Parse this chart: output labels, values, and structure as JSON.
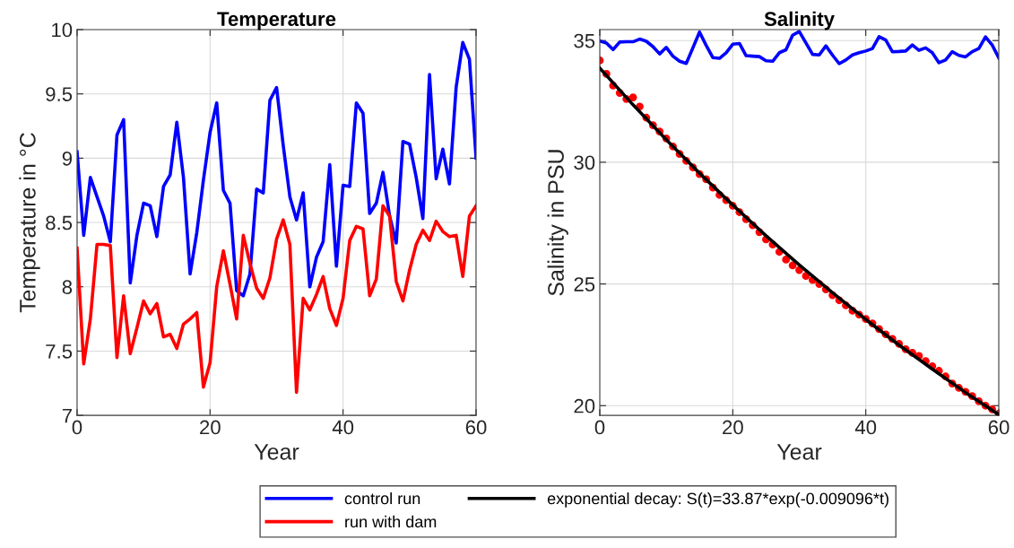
{
  "chart_data": [
    {
      "type": "line",
      "title": "Temperature",
      "xlabel": "Year",
      "ylabel": "Temperature in °C",
      "xlim": [
        0,
        60
      ],
      "xticks": [
        0,
        20,
        40,
        60
      ],
      "ylim": [
        7,
        10
      ],
      "yticks": [
        7,
        7.5,
        8,
        8.5,
        9,
        9.5,
        10
      ],
      "grid": true,
      "legend": "bottom",
      "x": [
        0,
        1,
        2,
        3,
        4,
        5,
        6,
        7,
        8,
        9,
        10,
        11,
        12,
        13,
        14,
        15,
        16,
        17,
        18,
        19,
        20,
        21,
        22,
        23,
        24,
        25,
        26,
        27,
        28,
        29,
        30,
        31,
        32,
        33,
        34,
        35,
        36,
        37,
        38,
        39,
        40,
        41,
        42,
        43,
        44,
        45,
        46,
        47,
        48,
        49,
        50,
        51,
        52,
        53,
        54,
        55,
        56,
        57,
        58,
        59,
        60
      ],
      "series": [
        {
          "name": "control run",
          "color": "#0000ff",
          "values": [
            9.05,
            8.4,
            8.85,
            8.7,
            8.55,
            8.35,
            9.18,
            9.3,
            8.03,
            8.4,
            8.65,
            8.63,
            8.39,
            8.78,
            8.87,
            9.28,
            8.85,
            8.1,
            8.42,
            8.83,
            9.2,
            9.43,
            8.75,
            8.65,
            7.97,
            7.93,
            8.1,
            8.76,
            8.73,
            9.45,
            9.55,
            9.1,
            8.7,
            8.52,
            8.73,
            8.0,
            8.23,
            8.35,
            8.95,
            8.16,
            8.79,
            8.78,
            9.43,
            9.35,
            8.57,
            8.65,
            8.89,
            8.55,
            8.34,
            9.13,
            9.11,
            8.85,
            8.53,
            9.65,
            8.84,
            9.07,
            8.8,
            9.55,
            9.9,
            9.77,
            9.0
          ]
        },
        {
          "name": "run with dam",
          "color": "#ff0000",
          "values": [
            8.3,
            7.4,
            7.75,
            8.33,
            8.33,
            8.32,
            7.45,
            7.93,
            7.48,
            7.68,
            7.89,
            7.79,
            7.87,
            7.61,
            7.63,
            7.52,
            7.71,
            7.75,
            7.8,
            7.22,
            7.41,
            8.0,
            8.28,
            8.02,
            7.75,
            8.4,
            8.18,
            7.99,
            7.91,
            8.07,
            8.37,
            8.52,
            8.33,
            7.18,
            7.91,
            7.82,
            7.94,
            8.08,
            7.83,
            7.7,
            7.91,
            8.36,
            8.47,
            8.45,
            7.93,
            8.06,
            8.63,
            8.55,
            8.04,
            7.89,
            8.13,
            8.33,
            8.44,
            8.36,
            8.51,
            8.43,
            8.39,
            8.4,
            8.08,
            8.55,
            8.63
          ]
        }
      ]
    },
    {
      "type": "line",
      "title": "Salinity",
      "xlabel": "Year",
      "ylabel": "Salinity in PSU",
      "xlim": [
        0,
        60
      ],
      "xticks": [
        0,
        20,
        40,
        60
      ],
      "ylim": [
        19.6,
        35.45
      ],
      "yticks": [
        20,
        25,
        30,
        35
      ],
      "grid": true,
      "legend": "bottom",
      "x": [
        0,
        1,
        2,
        3,
        4,
        5,
        6,
        7,
        8,
        9,
        10,
        11,
        12,
        13,
        14,
        15,
        16,
        17,
        18,
        19,
        20,
        21,
        22,
        23,
        24,
        25,
        26,
        27,
        28,
        29,
        30,
        31,
        32,
        33,
        34,
        35,
        36,
        37,
        38,
        39,
        40,
        41,
        42,
        43,
        44,
        45,
        46,
        47,
        48,
        49,
        50,
        51,
        52,
        53,
        54,
        55,
        56,
        57,
        58,
        59,
        60
      ],
      "series": [
        {
          "color": "#0000ff",
          "values": [
            34.98,
            34.9,
            34.63,
            34.94,
            34.95,
            34.95,
            35.06,
            34.97,
            34.75,
            34.45,
            34.72,
            34.36,
            34.15,
            34.06,
            34.7,
            35.35,
            34.8,
            34.3,
            34.27,
            34.5,
            34.85,
            34.88,
            34.38,
            34.36,
            34.34,
            34.17,
            34.15,
            34.5,
            34.62,
            35.22,
            35.37,
            34.9,
            34.43,
            34.41,
            34.78,
            34.4,
            34.05,
            34.2,
            34.41,
            34.5,
            34.57,
            34.67,
            35.16,
            35.02,
            34.54,
            34.55,
            34.57,
            34.82,
            34.6,
            34.7,
            34.5,
            34.09,
            34.2,
            34.54,
            34.39,
            34.33,
            34.54,
            34.67,
            35.15,
            34.82,
            34.29
          ]
        },
        {
          "type": "scatter",
          "marker": "circle",
          "color": "#ff0000",
          "values": [
            34.18,
            33.63,
            33.15,
            32.85,
            32.6,
            32.66,
            32.29,
            31.83,
            31.52,
            31.26,
            30.98,
            30.65,
            30.34,
            30.06,
            29.79,
            29.51,
            29.3,
            28.96,
            28.66,
            28.44,
            28.21,
            27.95,
            27.66,
            27.41,
            27.13,
            26.83,
            26.62,
            26.32,
            26.0,
            25.76,
            25.57,
            25.33,
            25.16,
            25.0,
            24.78,
            24.54,
            24.33,
            24.12,
            23.9,
            23.74,
            23.56,
            23.38,
            23.15,
            22.93,
            22.74,
            22.54,
            22.32,
            22.17,
            22.04,
            21.83,
            21.62,
            21.43,
            21.2,
            20.91,
            20.73,
            20.57,
            20.39,
            20.18,
            20.0,
            19.85,
            19.67
          ]
        },
        {
          "name": "exponential decay: S(t)=33.87*exp(-0.009096*t)",
          "type": "line",
          "color": "#000000",
          "x": [
            0,
            5,
            10,
            15,
            20,
            25,
            30,
            35,
            40,
            45,
            50,
            55,
            60
          ],
          "values": [
            33.87,
            32.36,
            30.93,
            29.55,
            28.24,
            26.98,
            25.78,
            24.64,
            23.54,
            22.49,
            21.5,
            20.54,
            19.63
          ]
        }
      ]
    }
  ]
}
